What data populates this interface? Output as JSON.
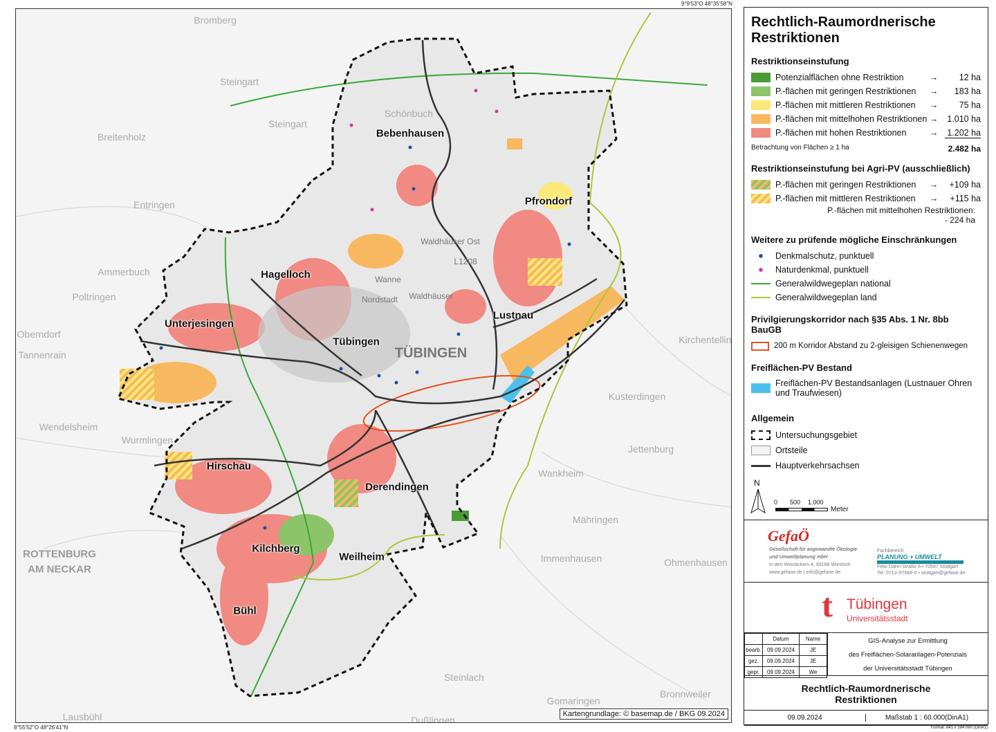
{
  "coordinates": {
    "top_right": "9°9'53\"O  48°35'58\"N",
    "bottom_left": "8°55'52\"O  48°26'41\"N"
  },
  "map": {
    "credit": "Kartengrundlage: © basemap.de / BKG 09.2024",
    "districts": [
      "Bebenhausen",
      "Pfrondorf",
      "Hagelloch",
      "Lustnau",
      "Unterjesingen",
      "Tübingen",
      "Hirschau",
      "Derendingen",
      "Kilchberg",
      "Weilheim",
      "Bühl"
    ],
    "city_label": "TÜBINGEN",
    "background_places": [
      "Bromberg",
      "Steingart",
      "Schönbuch",
      "Steingart",
      "Breitenholz",
      "Entringen",
      "Ammerbuch",
      "Poltringen",
      "Oberndorf",
      "Tannenrain",
      "Kirchentellinsfurt",
      "Kusterdingen",
      "Wendelsheim",
      "Wurmlingen",
      "Jettenburg",
      "Wankheim",
      "Mähringen",
      "Immenhausen",
      "Ohmenhausen",
      "Steinlach",
      "Bronnweiler",
      "Gomaringen",
      "Dußlingen",
      "Lausbühl",
      "ROTTENBURG",
      "AM NECKAR",
      "Waldhäuser Ost",
      "Wanne",
      "Nordstadt",
      "Waldhäuser",
      "L1208"
    ]
  },
  "legend": {
    "title": "Rechtlich-Raumordnerische Restriktionen",
    "s1": {
      "heading": "Restriktionseinstufung",
      "items": [
        {
          "label": "Potenzialflächen ohne Restriktion",
          "arrow": "→",
          "value": "12 ha",
          "color": "#4a9a36"
        },
        {
          "label": "P.-flächen mit geringen Restriktionen",
          "arrow": "→",
          "value": "183 ha",
          "color": "#8cc46a"
        },
        {
          "label": "P.-flächen mit mittleren Restriktionen",
          "arrow": "→",
          "value": "75 ha",
          "color": "#fbe97a"
        },
        {
          "label": "P.-flächen mit mittelhohen Restriktionen",
          "arrow": "→",
          "value": "1.010 ha",
          "color": "#f8b860"
        },
        {
          "label": "P.-flächen mit hohen Restriktionen",
          "arrow": "→",
          "value": "1.202 ha",
          "color": "#f08a82"
        }
      ],
      "note": "Betrachtung von Flächen ≥ 1 ha",
      "total": "2.482 ha"
    },
    "s2": {
      "heading": "Restriktionseinstufung bei Agri-PV (ausschließlich)",
      "items": [
        {
          "label": "P.-flächen mit geringen Restriktionen",
          "arrow": "→",
          "value": "+109 ha"
        },
        {
          "label": "P.-flächen mit mittleren Restriktionen",
          "arrow": "→",
          "value": "+115 ha"
        }
      ],
      "note1": "P.-flächen mit mittelhohen Restriktionen:",
      "note2": "- 224 ha"
    },
    "s3": {
      "heading": "Weitere zu prüfende mögliche Einschränkungen",
      "items": [
        "Denkmalschutz, punktuell",
        "Naturdenkmal, punktuell",
        "Generalwildwegeplan national",
        "Generalwildwegeplan land"
      ],
      "colors": [
        "#1a4fa8",
        "#c83c9a",
        "#3aa83a",
        "#a8c83a"
      ]
    },
    "s4": {
      "heading": "Privilgierungskorridor nach §35 Abs. 1 Nr. 8bb BauGB",
      "item": "200 m Korridor Abstand zu 2-gleisigen Schienenwegen",
      "color": "#e8501e"
    },
    "s5": {
      "heading": "Freiflächen-PV Bestand",
      "item": "Freiflächen-PV Bestandsanlagen (Lustnauer Ohren und Traufwiesen)",
      "color": "#4cc0ec"
    },
    "s6": {
      "heading": "Allgemein",
      "items": [
        "Untersuchungsgebiet",
        "Ortsteile",
        "Hauptverkehrsachsen"
      ]
    },
    "north": "N",
    "scale": {
      "t0": "0",
      "t1": "500",
      "t2": "1.000",
      "unit": "Meter"
    }
  },
  "titleblock": {
    "gefaoe": {
      "logo": "GefaÖ",
      "l1": "Gesellschaft für angewandte Ökologie",
      "l2": "und Umweltplanung mbH",
      "l3": "In den Weinäckern 4, 69168 Wiesloch",
      "l4": "www.gefaoe.de | info@gefaoe.de",
      "fb": "Fachbereich",
      "pu": "PLANUNG + UMWELT",
      "a1": "Felix-Dahn-Straße 6 • 70597 Stuttgart",
      "a2": "Tel. 0711/ 97668-0 • stuttgart@gefaoe.de"
    },
    "city": {
      "name": "Tübingen",
      "sub": "Universitätsstadt"
    },
    "table": {
      "h_date": "Datum",
      "h_name": "Name",
      "rows": [
        {
          "role": "bearb.",
          "date": "09.09.2024",
          "name": "JE"
        },
        {
          "role": "gez.",
          "date": "09.09.2024",
          "name": "JE"
        },
        {
          "role": "gepr.",
          "date": "09.09.2024",
          "name": "We"
        }
      ]
    },
    "desc": [
      "GIS-Analyse zur Ermittlung",
      "des Freiflächen-Solaranlagen-Potenzials",
      "der Universitätsstadt Tübingen"
    ],
    "title": "Rechtlich-Raumordnerische Restriktionen",
    "date": "09.09.2024",
    "scale": "Maßstab  1 : 60.000(DinA1)",
    "format": "Format: 841 x 594 mm (DinA1)"
  }
}
